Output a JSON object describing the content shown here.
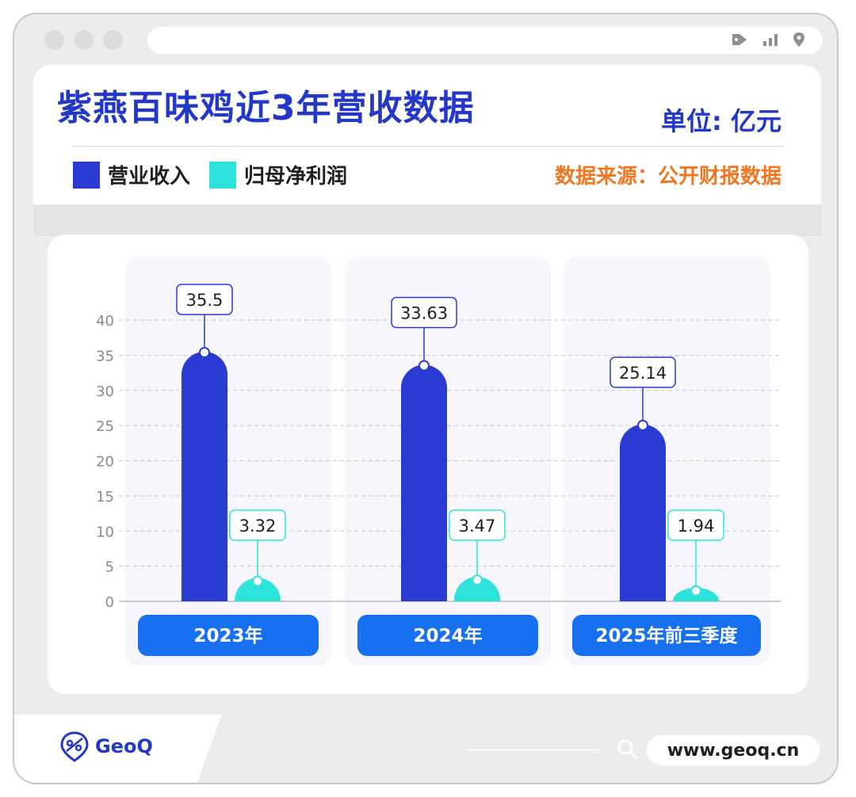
{
  "header": {
    "title": "紫燕百味鸡近3年营收数据",
    "unit": "单位: 亿元",
    "source": "数据来源：公开财报数据"
  },
  "legend": {
    "revenue": "营业收入",
    "profit": "归母净利润"
  },
  "colors": {
    "revenue": "#2a3bd1",
    "profit": "#2ee3dc",
    "title": "#2438c8",
    "source": "#f07722",
    "category_button": "#1670f0"
  },
  "footer": {
    "brand": "GeoQ",
    "url": "www.geoq.cn"
  },
  "chart_data": {
    "type": "bar",
    "categories": [
      "2023年",
      "2024年",
      "2025年前三季度"
    ],
    "series": [
      {
        "name": "营业收入",
        "values": [
          35.5,
          33.63,
          25.14
        ]
      },
      {
        "name": "归母净利润",
        "values": [
          3.32,
          3.47,
          1.94
        ]
      }
    ],
    "data_labels": [
      [
        "35.5",
        "33.63",
        "25.14"
      ],
      [
        "3.32",
        "3.47",
        "1.94"
      ]
    ],
    "y_ticks": [
      "0",
      "5",
      "10",
      "15",
      "20",
      "25",
      "30",
      "35",
      "40"
    ],
    "ylim": [
      0,
      40
    ],
    "grid": true,
    "legend_position": "top-left"
  }
}
